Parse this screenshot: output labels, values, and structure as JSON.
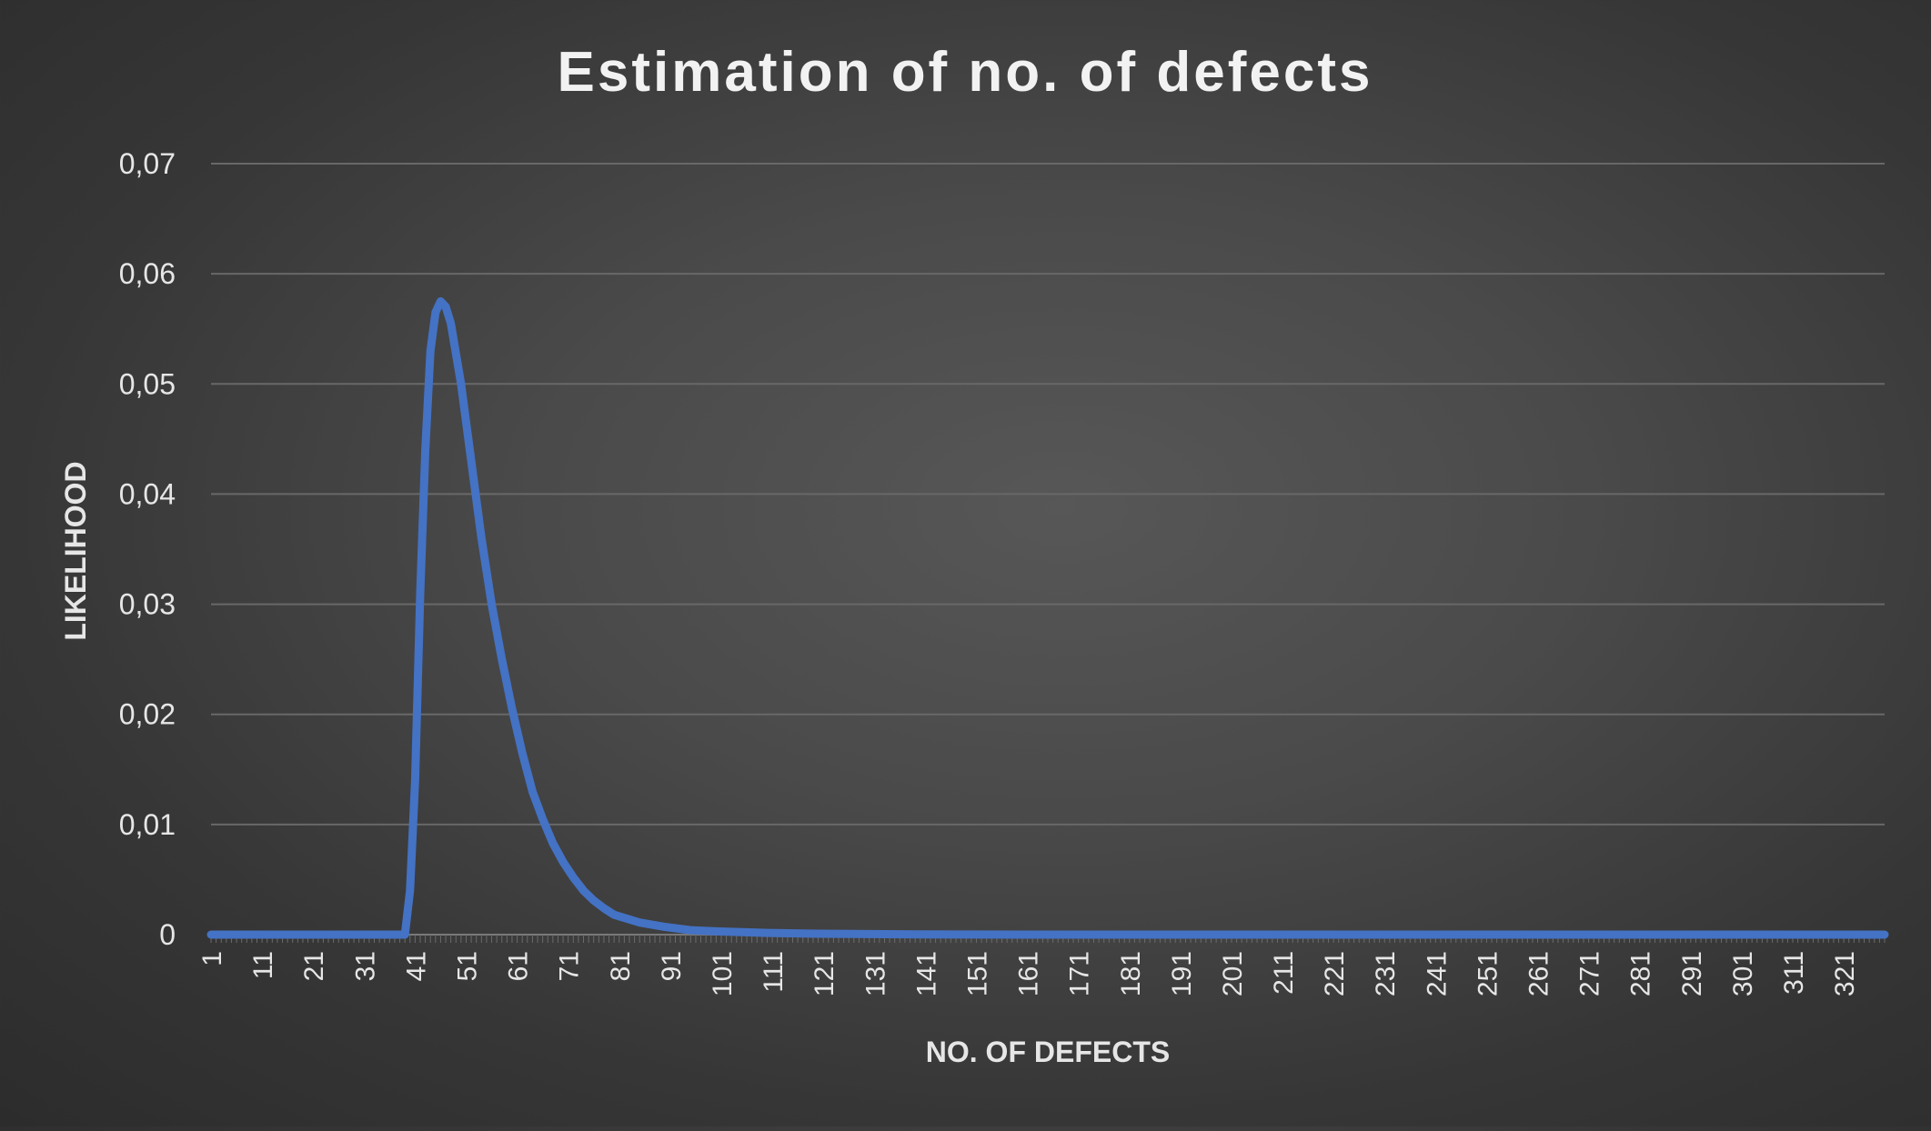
{
  "chart_data": {
    "type": "line",
    "title": "Estimation of no. of defects",
    "xlabel": "NO. OF DEFECTS",
    "ylabel": "LIKELIHOOD",
    "x_range": [
      1,
      329
    ],
    "ylim": [
      0,
      0.07
    ],
    "y_ticks": [
      "0",
      "0,01",
      "0,02",
      "0,03",
      "0,04",
      "0,05",
      "0,06",
      "0,07"
    ],
    "x_tick_labels": [
      "1",
      "11",
      "21",
      "31",
      "41",
      "51",
      "61",
      "71",
      "81",
      "91",
      "101",
      "111",
      "121",
      "131",
      "141",
      "151",
      "161",
      "171",
      "181",
      "191",
      "201",
      "211",
      "221",
      "231",
      "241",
      "251",
      "261",
      "271",
      "281",
      "291",
      "301",
      "311",
      "321"
    ],
    "grid": true,
    "legend": "none",
    "series": [
      {
        "color": "#4472C4",
        "points": [
          [
            1,
            0
          ],
          [
            38,
            0
          ],
          [
            39,
            0
          ],
          [
            40,
            0.004
          ],
          [
            41,
            0.014
          ],
          [
            42,
            0.031
          ],
          [
            43,
            0.044
          ],
          [
            44,
            0.053
          ],
          [
            45,
            0.0565
          ],
          [
            46,
            0.0575
          ],
          [
            47,
            0.057
          ],
          [
            48,
            0.0555
          ],
          [
            50,
            0.05
          ],
          [
            52,
            0.043
          ],
          [
            54,
            0.036
          ],
          [
            56,
            0.03
          ],
          [
            58,
            0.025
          ],
          [
            60,
            0.0205
          ],
          [
            62,
            0.0165
          ],
          [
            64,
            0.013
          ],
          [
            66,
            0.0105
          ],
          [
            68,
            0.0083
          ],
          [
            70,
            0.0066
          ],
          [
            72,
            0.0052
          ],
          [
            74,
            0.004
          ],
          [
            76,
            0.0031
          ],
          [
            78,
            0.0024
          ],
          [
            80,
            0.0018
          ],
          [
            85,
            0.0011
          ],
          [
            90,
            0.0007
          ],
          [
            95,
            0.0004
          ],
          [
            100,
            0.0003
          ],
          [
            110,
            0.00015
          ],
          [
            120,
            8e-05
          ],
          [
            140,
            2e-05
          ],
          [
            160,
            0
          ],
          [
            329,
            0
          ]
        ]
      }
    ],
    "colors": {
      "line": "#4472C4",
      "text": "#e6e6e6",
      "title": "#f2f2f2",
      "grid": "#686868"
    }
  }
}
